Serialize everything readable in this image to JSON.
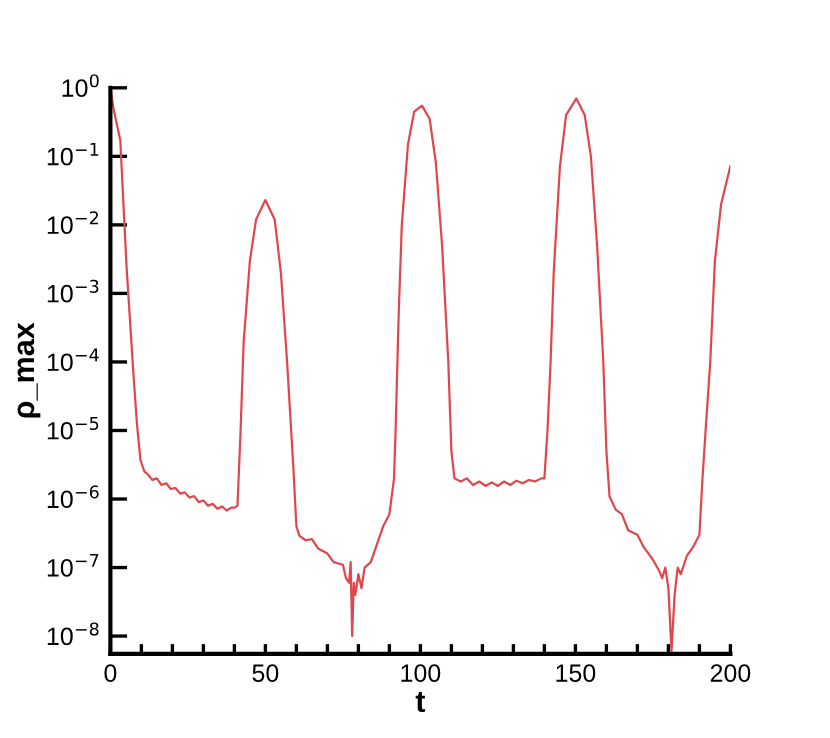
{
  "chart_data": {
    "type": "line",
    "xlabel": "t",
    "ylabel": "ρ_max",
    "log": "y",
    "grid": false,
    "marker": "none",
    "line_style": "solid",
    "xlim": [
      0,
      200
    ],
    "ylim": [
      5.5e-09,
      1
    ],
    "xticks": [
      0,
      {
        "value": 10,
        "label": null
      },
      {
        "value": 20,
        "label": null
      },
      {
        "value": 30,
        "label": null
      },
      {
        "value": 40,
        "label": null
      },
      50,
      {
        "value": 60,
        "label": null
      },
      {
        "value": 70,
        "label": null
      },
      {
        "value": 80,
        "label": null
      },
      {
        "value": 90,
        "label": null
      },
      100,
      {
        "value": 110,
        "label": null
      },
      {
        "value": 120,
        "label": null
      },
      {
        "value": 130,
        "label": null
      },
      {
        "value": 140,
        "label": null
      },
      150,
      {
        "value": 160,
        "label": null
      },
      {
        "value": 170,
        "label": null
      },
      {
        "value": 180,
        "label": null
      },
      {
        "value": 190,
        "label": null
      },
      200
    ],
    "yticks": [
      {
        "value": 1e-08,
        "label": "10$^{−8}$"
      },
      {
        "value": 1e-07,
        "label": "10$^{−7}$"
      },
      {
        "value": 1e-06,
        "label": "10$^{−6}$"
      },
      {
        "value": 1e-05,
        "label": "10$^{−5}$"
      },
      {
        "value": 0.0001,
        "label": "10$^{−4}$"
      },
      {
        "value": 0.001,
        "label": "10$^{−3}$"
      },
      {
        "value": 0.01,
        "label": "10$^{−2}$"
      },
      {
        "value": 0.1,
        "label": "10$^{−1}$"
      },
      {
        "value": 1,
        "label": "10$^{0}$"
      }
    ],
    "series": [
      {
        "color": "#e0474c",
        "x": [
          0,
          1,
          3.2,
          5.2,
          7.5,
          8.6,
          9.7,
          11,
          12,
          13.5,
          15,
          16.5,
          18,
          19.5,
          21,
          22.5,
          24,
          25.5,
          27,
          28.5,
          30,
          31.5,
          33,
          34.5,
          36,
          37.5,
          39,
          40,
          41,
          42,
          43,
          45,
          47,
          50,
          53,
          55,
          57,
          59,
          60,
          61,
          63,
          65,
          67,
          70,
          72,
          75,
          76,
          77,
          77.5,
          78,
          78.5,
          79,
          80,
          81,
          82,
          84,
          86,
          88,
          90,
          91.5,
          92,
          93,
          94,
          96,
          98,
          100.5,
          103,
          105,
          107,
          109,
          110,
          111,
          113,
          115,
          117,
          119,
          121,
          123,
          125,
          127,
          129,
          131,
          133,
          135,
          137,
          139,
          140,
          141,
          142,
          143,
          145,
          147,
          150.3,
          153,
          155,
          157,
          159,
          160,
          161,
          163,
          165,
          167,
          170,
          172,
          175,
          177,
          178,
          179,
          180,
          181,
          182,
          183,
          184,
          186,
          188,
          190,
          191,
          192,
          193.5,
          195,
          197,
          200
        ],
        "values": [
          1,
          0.5,
          0.17,
          0.0025,
          6e-05,
          1.2e-05,
          3.7e-06,
          2.5e-06,
          2.3e-06,
          1.9e-06,
          2e-06,
          1.6e-06,
          1.7e-06,
          1.4e-06,
          1.45e-06,
          1.2e-06,
          1.25e-06,
          1.05e-06,
          1.1e-06,
          9e-07,
          9.5e-07,
          8e-07,
          8.5e-07,
          7.2e-07,
          7.8e-07,
          6.8e-07,
          7.5e-07,
          7.5e-07,
          8e-07,
          1e-05,
          0.0002,
          0.003,
          0.012,
          0.023,
          0.012,
          0.002,
          0.0001,
          3e-06,
          4e-07,
          2.9e-07,
          2.5e-07,
          2.6e-07,
          1.9e-07,
          1.6e-07,
          1.2e-07,
          1.1e-07,
          7e-08,
          6e-08,
          1.2e-07,
          1e-08,
          6e-08,
          4e-08,
          8e-08,
          5e-08,
          1e-07,
          1.2e-07,
          2.2e-07,
          4e-07,
          6e-07,
          2e-06,
          1e-05,
          0.0005,
          0.01,
          0.15,
          0.45,
          0.55,
          0.35,
          0.08,
          0.005,
          0.0001,
          5e-06,
          2e-06,
          1.8e-06,
          2e-06,
          1.6e-06,
          1.8e-06,
          1.55e-06,
          1.75e-06,
          1.55e-06,
          1.8e-06,
          1.6e-06,
          1.85e-06,
          1.7e-06,
          1.9e-06,
          1.8e-06,
          2e-06,
          2e-06,
          1e-05,
          0.0001,
          0.002,
          0.07,
          0.4,
          0.7,
          0.4,
          0.1,
          0.005,
          0.0001,
          5e-06,
          1.1e-06,
          7e-07,
          6e-07,
          3.5e-07,
          3e-07,
          2e-07,
          1.3e-07,
          9e-08,
          7e-08,
          1e-07,
          5e-08,
          6e-09,
          4e-08,
          1e-07,
          8e-08,
          1.5e-07,
          2e-07,
          3e-07,
          2e-06,
          1e-05,
          0.0001,
          0.003,
          0.02,
          0.072
        ]
      }
    ]
  }
}
